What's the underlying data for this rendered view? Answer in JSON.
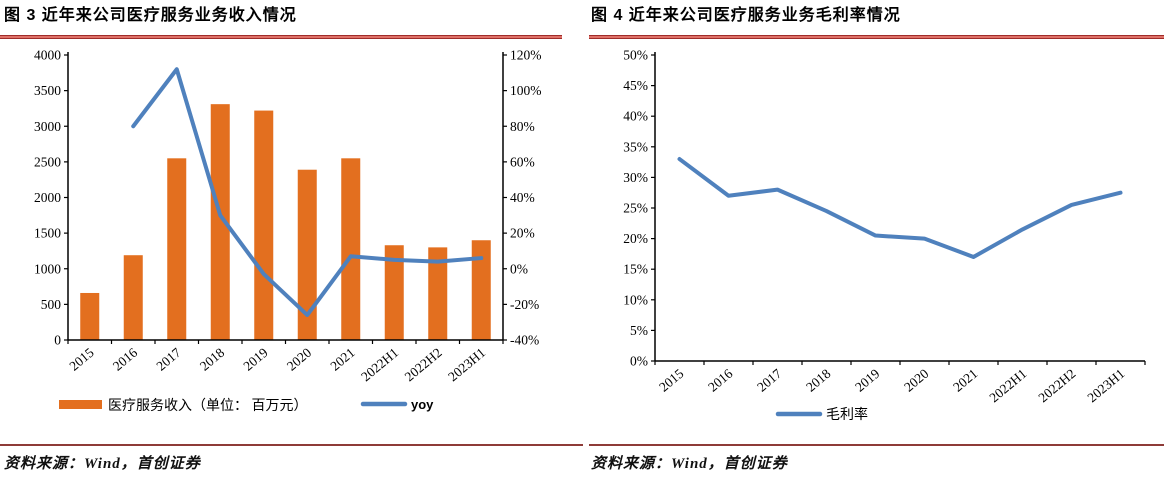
{
  "figures": [
    {
      "title": "图 3 近年来公司医疗服务业务收入情况",
      "source": "资料来源：Wind，首创证券"
    },
    {
      "title": "图 4 近年来公司医疗服务业务毛利率情况",
      "source": "资料来源：Wind，首创证券"
    }
  ],
  "colors": {
    "bar_orange": "#E36F1F",
    "line_blue": "#4F81BD",
    "title_rule_dark": "#A02C2A",
    "title_rule_light": "#DE7168",
    "source_rule": "#8E3B38",
    "axis": "#000000"
  },
  "chart_data": [
    {
      "type": "bar",
      "subtype": "bar+line-combo",
      "categories": [
        "2015",
        "2016",
        "2017",
        "2018",
        "2019",
        "2020",
        "2021",
        "2022H1",
        "2022H2",
        "2023H1"
      ],
      "series": [
        {
          "name": "医疗服务收入（单位： 百万元）",
          "kind": "bar",
          "axis": "left",
          "values": [
            660,
            1190,
            2550,
            3310,
            3220,
            2390,
            2550,
            1330,
            1300,
            1400
          ]
        },
        {
          "name": "yoy",
          "kind": "line",
          "axis": "right",
          "values": [
            null,
            80,
            112,
            30,
            -3,
            -26,
            7,
            5,
            4,
            6
          ]
        }
      ],
      "left_axis": {
        "min": 0,
        "max": 4000,
        "step": 500,
        "tick_labels": [
          "0",
          "500",
          "1000",
          "1500",
          "2000",
          "2500",
          "3000",
          "3500",
          "4000"
        ]
      },
      "right_axis": {
        "min": -40,
        "max": 120,
        "step": 20,
        "tick_labels": [
          "-40%",
          "-20%",
          "0%",
          "20%",
          "40%",
          "60%",
          "80%",
          "100%",
          "120%"
        ]
      },
      "grid": false,
      "legend_position": "bottom"
    },
    {
      "type": "line",
      "categories": [
        "2015",
        "2016",
        "2017",
        "2018",
        "2019",
        "2020",
        "2021",
        "2022H1",
        "2022H2",
        "2023H1"
      ],
      "series": [
        {
          "name": "毛利率",
          "kind": "line",
          "axis": "left",
          "values": [
            33,
            27,
            28,
            24.5,
            20.5,
            20,
            17,
            21.5,
            25.5,
            27.5
          ]
        }
      ],
      "left_axis": {
        "min": 0,
        "max": 50,
        "step": 5,
        "tick_labels": [
          "0%",
          "5%",
          "10%",
          "15%",
          "20%",
          "25%",
          "30%",
          "35%",
          "40%",
          "45%",
          "50%"
        ]
      },
      "grid": false,
      "legend_position": "bottom"
    }
  ]
}
